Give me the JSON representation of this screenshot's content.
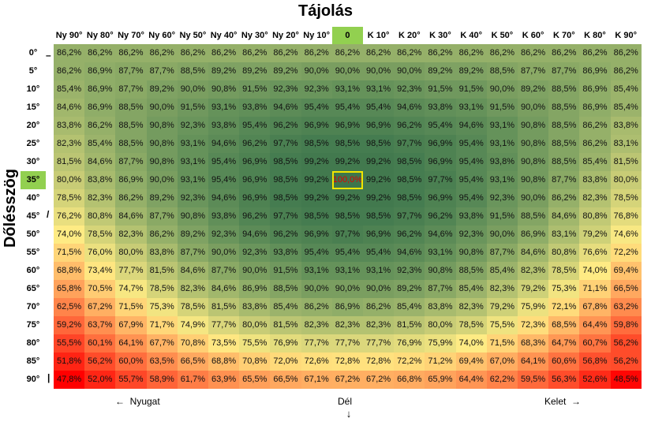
{
  "chart_data": {
    "type": "heatmap",
    "title": "Tájolás",
    "xlabel": "Tájolás",
    "ylabel": "Dőlésszög",
    "columns": [
      "Ny 90°",
      "Ny 80°",
      "Ny 70°",
      "Ny 60°",
      "Ny 50°",
      "Ny 40°",
      "Ny 30°",
      "Ny 20°",
      "Ny 10°",
      "0",
      "K 10°",
      "K 20°",
      "K 30°",
      "K 40°",
      "K 50°",
      "K 60°",
      "K 70°",
      "K 80°",
      "K 90°"
    ],
    "rows": [
      "0°",
      "5°",
      "10°",
      "15°",
      "20°",
      "25°",
      "30°",
      "35°",
      "40°",
      "45°",
      "50°",
      "55°",
      "60°",
      "65°",
      "70°",
      "75°",
      "80°",
      "85°",
      "90°"
    ],
    "values": [
      [
        "86,2%",
        "86,2%",
        "86,2%",
        "86,2%",
        "86,2%",
        "86,2%",
        "86,2%",
        "86,2%",
        "86,2%",
        "86,2%",
        "86,2%",
        "86,2%",
        "86,2%",
        "86,2%",
        "86,2%",
        "86,2%",
        "86,2%",
        "86,2%",
        "86,2%"
      ],
      [
        "86,2%",
        "86,9%",
        "87,7%",
        "87,7%",
        "88,5%",
        "89,2%",
        "89,2%",
        "89,2%",
        "90,0%",
        "90,0%",
        "90,0%",
        "90,0%",
        "89,2%",
        "89,2%",
        "88,5%",
        "87,7%",
        "87,7%",
        "86,9%",
        "86,2%"
      ],
      [
        "85,4%",
        "86,9%",
        "87,7%",
        "89,2%",
        "90,0%",
        "90,8%",
        "91,5%",
        "92,3%",
        "92,3%",
        "93,1%",
        "93,1%",
        "92,3%",
        "91,5%",
        "91,5%",
        "90,0%",
        "89,2%",
        "88,5%",
        "86,9%",
        "85,4%"
      ],
      [
        "84,6%",
        "86,9%",
        "88,5%",
        "90,0%",
        "91,5%",
        "93,1%",
        "93,8%",
        "94,6%",
        "95,4%",
        "95,4%",
        "95,4%",
        "94,6%",
        "93,8%",
        "93,1%",
        "91,5%",
        "90,0%",
        "88,5%",
        "86,9%",
        "85,4%"
      ],
      [
        "83,8%",
        "86,2%",
        "88,5%",
        "90,8%",
        "92,3%",
        "93,8%",
        "95,4%",
        "96,2%",
        "96,9%",
        "96,9%",
        "96,9%",
        "96,2%",
        "95,4%",
        "94,6%",
        "93,1%",
        "90,8%",
        "88,5%",
        "86,2%",
        "83,8%"
      ],
      [
        "82,3%",
        "85,4%",
        "88,5%",
        "90,8%",
        "93,1%",
        "94,6%",
        "96,2%",
        "97,7%",
        "98,5%",
        "98,5%",
        "98,5%",
        "97,7%",
        "96,9%",
        "95,4%",
        "93,1%",
        "90,8%",
        "88,5%",
        "86,2%",
        "83,1%"
      ],
      [
        "81,5%",
        "84,6%",
        "87,7%",
        "90,8%",
        "93,1%",
        "95,4%",
        "96,9%",
        "98,5%",
        "99,2%",
        "99,2%",
        "99,2%",
        "98,5%",
        "96,9%",
        "95,4%",
        "93,8%",
        "90,8%",
        "88,5%",
        "85,4%",
        "81,5%"
      ],
      [
        "80,0%",
        "83,8%",
        "86,9%",
        "90,0%",
        "93,1%",
        "95,4%",
        "96,9%",
        "98,5%",
        "99,2%",
        "100,0%",
        "99,2%",
        "98,5%",
        "97,7%",
        "95,4%",
        "93,1%",
        "90,8%",
        "87,7%",
        "83,8%",
        "80,0%"
      ],
      [
        "78,5%",
        "82,3%",
        "86,2%",
        "89,2%",
        "92,3%",
        "94,6%",
        "96,9%",
        "98,5%",
        "99,2%",
        "99,2%",
        "99,2%",
        "98,5%",
        "96,9%",
        "95,4%",
        "92,3%",
        "90,0%",
        "86,2%",
        "82,3%",
        "78,5%"
      ],
      [
        "76,2%",
        "80,8%",
        "84,6%",
        "87,7%",
        "90,8%",
        "93,8%",
        "96,2%",
        "97,7%",
        "98,5%",
        "98,5%",
        "98,5%",
        "97,7%",
        "96,2%",
        "93,8%",
        "91,5%",
        "88,5%",
        "84,6%",
        "80,8%",
        "76,8%"
      ],
      [
        "74,0%",
        "78,5%",
        "82,3%",
        "86,2%",
        "89,2%",
        "92,3%",
        "94,6%",
        "96,2%",
        "96,9%",
        "97,7%",
        "96,9%",
        "96,2%",
        "94,6%",
        "92,3%",
        "90,0%",
        "86,9%",
        "83,1%",
        "79,2%",
        "74,6%"
      ],
      [
        "71,5%",
        "76,0%",
        "80,0%",
        "83,8%",
        "87,7%",
        "90,0%",
        "92,3%",
        "93,8%",
        "95,4%",
        "95,4%",
        "95,4%",
        "94,6%",
        "93,1%",
        "90,8%",
        "87,7%",
        "84,6%",
        "80,8%",
        "76,6%",
        "72,2%"
      ],
      [
        "68,8%",
        "73,4%",
        "77,7%",
        "81,5%",
        "84,6%",
        "87,7%",
        "90,0%",
        "91,5%",
        "93,1%",
        "93,1%",
        "93,1%",
        "92,3%",
        "90,8%",
        "88,5%",
        "85,4%",
        "82,3%",
        "78,5%",
        "74,0%",
        "69,4%"
      ],
      [
        "65,8%",
        "70,5%",
        "74,7%",
        "78,5%",
        "82,3%",
        "84,6%",
        "86,9%",
        "88,5%",
        "90,0%",
        "90,0%",
        "90,0%",
        "89,2%",
        "87,7%",
        "85,4%",
        "82,3%",
        "79,2%",
        "75,3%",
        "71,1%",
        "66,5%"
      ],
      [
        "62,5%",
        "67,2%",
        "71,5%",
        "75,3%",
        "78,5%",
        "81,5%",
        "83,8%",
        "85,4%",
        "86,2%",
        "86,9%",
        "86,2%",
        "85,4%",
        "83,8%",
        "82,3%",
        "79,2%",
        "75,9%",
        "72,1%",
        "67,8%",
        "63,2%"
      ],
      [
        "59,2%",
        "63,7%",
        "67,9%",
        "71,7%",
        "74,9%",
        "77,7%",
        "80,0%",
        "81,5%",
        "82,3%",
        "82,3%",
        "82,3%",
        "81,5%",
        "80,0%",
        "78,5%",
        "75,5%",
        "72,3%",
        "68,5%",
        "64,4%",
        "59,8%"
      ],
      [
        "55,5%",
        "60,1%",
        "64,1%",
        "67,7%",
        "70,8%",
        "73,5%",
        "75,5%",
        "76,9%",
        "77,7%",
        "77,7%",
        "77,7%",
        "76,9%",
        "75,9%",
        "74,0%",
        "71,5%",
        "68,3%",
        "64,7%",
        "60,7%",
        "56,2%"
      ],
      [
        "51,8%",
        "56,2%",
        "60,0%",
        "63,5%",
        "66,5%",
        "68,8%",
        "70,8%",
        "72,0%",
        "72,6%",
        "72,8%",
        "72,8%",
        "72,2%",
        "71,2%",
        "69,4%",
        "67,0%",
        "64,1%",
        "60,6%",
        "56,8%",
        "56,2%"
      ],
      [
        "47,8%",
        "52,0%",
        "55,7%",
        "58,9%",
        "61,7%",
        "63,9%",
        "65,5%",
        "66,5%",
        "67,1%",
        "67,2%",
        "67,2%",
        "66,8%",
        "65,9%",
        "64,4%",
        "62,2%",
        "59,5%",
        "56,3%",
        "52,6%",
        "48,5%"
      ]
    ],
    "highlight_column": "0",
    "highlight_row": "35°",
    "max_cell": "100,0%",
    "color_scale": {
      "low": "#ff0000",
      "mid": "#ffeb84",
      "high": "#63be7b"
    }
  },
  "tilt_marks": {
    "flat": "–",
    "diag": "/",
    "vertical": "|"
  },
  "footer": {
    "west": "Nyugat",
    "west_arrow": "←",
    "south": "Dél",
    "south_arrow": "↓",
    "east": "Kelet",
    "east_arrow": "→"
  }
}
